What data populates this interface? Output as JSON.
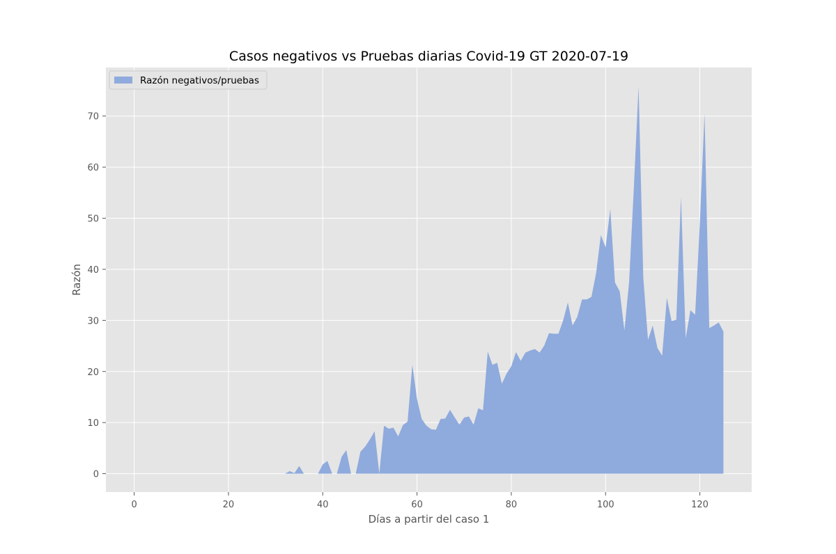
{
  "chart_data": {
    "type": "area",
    "title": "Casos negativos vs Pruebas diarias Covid-19 GT 2020-07-19",
    "xlabel": "Días a partir del caso 1",
    "ylabel": "Razón",
    "xlim": [
      -6,
      131
    ],
    "ylim": [
      -3.6,
      79.5
    ],
    "xticks": [
      0,
      20,
      40,
      60,
      80,
      100,
      120
    ],
    "yticks": [
      0,
      10,
      20,
      30,
      40,
      50,
      60,
      70
    ],
    "grid": true,
    "legend_position": "upper-left",
    "colors": {
      "fill": "#8faadc",
      "background": "#e5e5e5",
      "grid": "#ffffff"
    },
    "series": [
      {
        "name": "Razón negativos/pruebas",
        "x": [
          0,
          1,
          2,
          3,
          4,
          5,
          6,
          7,
          8,
          9,
          10,
          11,
          12,
          13,
          14,
          15,
          16,
          17,
          18,
          19,
          20,
          21,
          22,
          23,
          24,
          25,
          26,
          27,
          28,
          29,
          30,
          31,
          32,
          33,
          34,
          35,
          36,
          37,
          38,
          39,
          40,
          41,
          42,
          43,
          44,
          45,
          46,
          47,
          48,
          49,
          50,
          51,
          52,
          53,
          54,
          55,
          56,
          57,
          58,
          59,
          60,
          61,
          62,
          63,
          64,
          65,
          66,
          67,
          68,
          69,
          70,
          71,
          72,
          73,
          74,
          75,
          76,
          77,
          78,
          79,
          80,
          81,
          82,
          83,
          84,
          85,
          86,
          87,
          88,
          89,
          90,
          91,
          92,
          93,
          94,
          95,
          96,
          97,
          98,
          99,
          100,
          101,
          102,
          103,
          104,
          105,
          106,
          107,
          108,
          109,
          110,
          111,
          112,
          113,
          114,
          115,
          116,
          117,
          118,
          119,
          120,
          121,
          122,
          123,
          124,
          125
        ],
        "values": [
          0,
          0,
          0,
          0,
          0,
          0,
          0,
          0,
          0,
          0,
          0,
          0,
          0,
          0,
          0,
          0,
          0,
          0,
          0,
          0,
          0,
          0,
          0,
          0,
          0,
          0,
          0,
          0,
          0,
          0,
          0,
          0,
          0,
          0.5,
          0.1,
          1.5,
          0,
          0,
          0,
          0,
          1.8,
          2.5,
          0,
          0,
          3.3,
          4.6,
          0,
          0,
          4.3,
          5.3,
          6.7,
          8.3,
          0,
          9.4,
          8.8,
          9,
          7.3,
          9.5,
          10.2,
          21.3,
          14.6,
          10.7,
          9.4,
          8.7,
          8.6,
          10.7,
          10.8,
          12.5,
          11,
          9.6,
          11,
          11.2,
          9.6,
          12.8,
          12.4,
          23.9,
          21.3,
          21.7,
          17.6,
          19.6,
          21,
          23.8,
          22.1,
          23.7,
          24.1,
          24.4,
          23.7,
          25.1,
          27.5,
          27.4,
          27.4,
          30,
          33.5,
          29,
          30.7,
          34.1,
          34.1,
          34.6,
          39.3,
          46.7,
          44.3,
          51.8,
          37.4,
          35.7,
          28,
          37.6,
          56,
          75.8,
          38.4,
          26.2,
          29,
          24.6,
          23.1,
          34.4,
          29.9,
          30.1,
          54.2,
          26.5,
          32,
          31.1,
          49,
          70.5,
          28.5,
          29,
          29.6,
          27.8
        ]
      }
    ]
  }
}
